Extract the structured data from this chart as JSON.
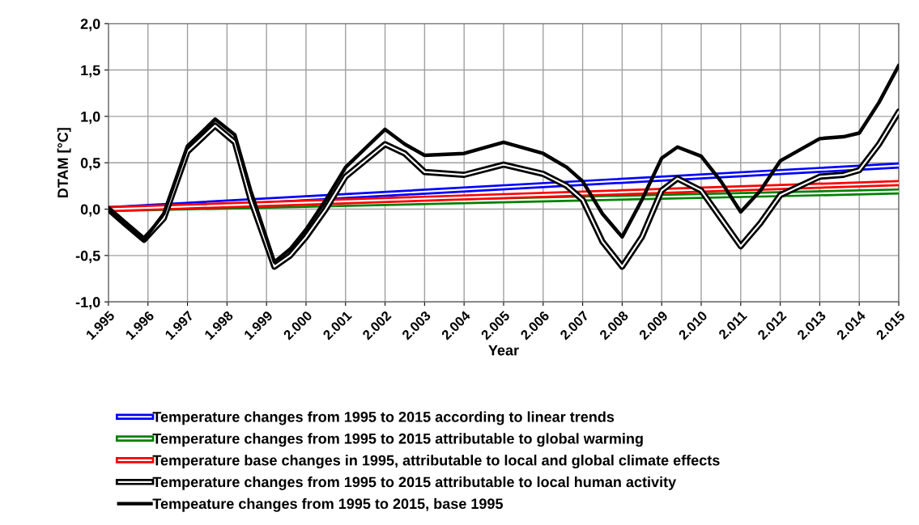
{
  "chart_data": {
    "type": "line",
    "xlabel": "Year",
    "ylabel": "DTAM [°C]",
    "xlim": [
      1995,
      2015
    ],
    "ylim": [
      -1.0,
      2.0
    ],
    "xticks": [
      {
        "value": 1995,
        "label": "1.995"
      },
      {
        "value": 1996,
        "label": "1.996"
      },
      {
        "value": 1997,
        "label": "1.997"
      },
      {
        "value": 1998,
        "label": "1.998"
      },
      {
        "value": 1999,
        "label": "1.999"
      },
      {
        "value": 2000,
        "label": "2.000"
      },
      {
        "value": 2001,
        "label": "2.001"
      },
      {
        "value": 2002,
        "label": "2.002"
      },
      {
        "value": 2003,
        "label": "2.003"
      },
      {
        "value": 2004,
        "label": "2.004"
      },
      {
        "value": 2005,
        "label": "2.005"
      },
      {
        "value": 2006,
        "label": "2.006"
      },
      {
        "value": 2007,
        "label": "2.007"
      },
      {
        "value": 2008,
        "label": "2.008"
      },
      {
        "value": 2009,
        "label": "2.009"
      },
      {
        "value": 2010,
        "label": "2.010"
      },
      {
        "value": 2011,
        "label": "2.011"
      },
      {
        "value": 2012,
        "label": "2.012"
      },
      {
        "value": 2013,
        "label": "2.013"
      },
      {
        "value": 2014,
        "label": "2.014"
      },
      {
        "value": 2015,
        "label": "2.015"
      }
    ],
    "yticks": [
      {
        "value": -1.0,
        "label": "-1,0"
      },
      {
        "value": -0.5,
        "label": "-0,5"
      },
      {
        "value": 0.0,
        "label": "0,0"
      },
      {
        "value": 0.5,
        "label": "0,5"
      },
      {
        "value": 1.0,
        "label": "1,0"
      },
      {
        "value": 1.5,
        "label": "1,5"
      },
      {
        "value": 2.0,
        "label": "2,0"
      }
    ],
    "grid": true,
    "legend": "bottom",
    "marker": "none",
    "series": [
      {
        "name": "Temperature changes from 1995 to 2015 according to linear trends",
        "color": "#0000ff",
        "x": [
          1995,
          2015
        ],
        "values": [
          0.0,
          0.47
        ]
      },
      {
        "name": "Temperature changes from 1995 to 2015 attributable to global warming",
        "color": "#008000",
        "x": [
          1995,
          2015
        ],
        "values": [
          0.0,
          0.19
        ]
      },
      {
        "name": "Temperature base changes in 1995, attributable to local and global climate effects",
        "color": "#ff0000",
        "x": [
          1995,
          2015
        ],
        "values": [
          0.0,
          0.28
        ]
      },
      {
        "name": "Temperature changes from 1995 to 2015 attributable to local human activity",
        "color": "#000000",
        "x": [
          1995,
          1995.4,
          1995.9,
          1996.4,
          1997.0,
          1997.7,
          1998.2,
          1998.6,
          1999.2,
          1999.6,
          2000.0,
          2000.5,
          2001.0,
          2002.0,
          2002.5,
          2003.0,
          2004.0,
          2005.0,
          2006.0,
          2006.6,
          2007.0,
          2007.5,
          2008.0,
          2008.5,
          2009.0,
          2009.4,
          2010.0,
          2010.5,
          2011.0,
          2011.5,
          2012.0,
          2013.0,
          2013.6,
          2014.0,
          2014.5,
          2015.0
        ],
        "values": [
          0.0,
          -0.15,
          -0.33,
          -0.1,
          0.62,
          0.9,
          0.72,
          0.1,
          -0.62,
          -0.5,
          -0.3,
          0.0,
          0.35,
          0.7,
          0.6,
          0.4,
          0.37,
          0.48,
          0.38,
          0.25,
          0.1,
          -0.35,
          -0.62,
          -0.3,
          0.2,
          0.33,
          0.2,
          -0.1,
          -0.4,
          -0.15,
          0.15,
          0.35,
          0.37,
          0.42,
          0.7,
          1.05
        ]
      },
      {
        "name": "Tempeature changes from 1995 to 2015, base 1995",
        "color": "#000000",
        "x": [
          1995,
          1995.4,
          1995.9,
          1996.4,
          1997.0,
          1997.7,
          1998.2,
          1998.6,
          1999.2,
          1999.6,
          2000.0,
          2000.5,
          2001.0,
          2002.0,
          2002.5,
          2003.0,
          2004.0,
          2005.0,
          2006.0,
          2006.6,
          2007.0,
          2007.5,
          2008.0,
          2008.5,
          2009.0,
          2009.4,
          2010.0,
          2010.5,
          2011.0,
          2011.5,
          2012.0,
          2013.0,
          2013.6,
          2014.0,
          2014.5,
          2015.0
        ],
        "values": [
          0.0,
          -0.15,
          -0.33,
          -0.05,
          0.68,
          0.97,
          0.8,
          0.2,
          -0.57,
          -0.43,
          -0.22,
          0.1,
          0.45,
          0.86,
          0.7,
          0.58,
          0.6,
          0.72,
          0.6,
          0.45,
          0.3,
          -0.05,
          -0.3,
          0.1,
          0.55,
          0.67,
          0.57,
          0.3,
          -0.03,
          0.2,
          0.52,
          0.76,
          0.78,
          0.82,
          1.15,
          1.55
        ]
      }
    ]
  }
}
